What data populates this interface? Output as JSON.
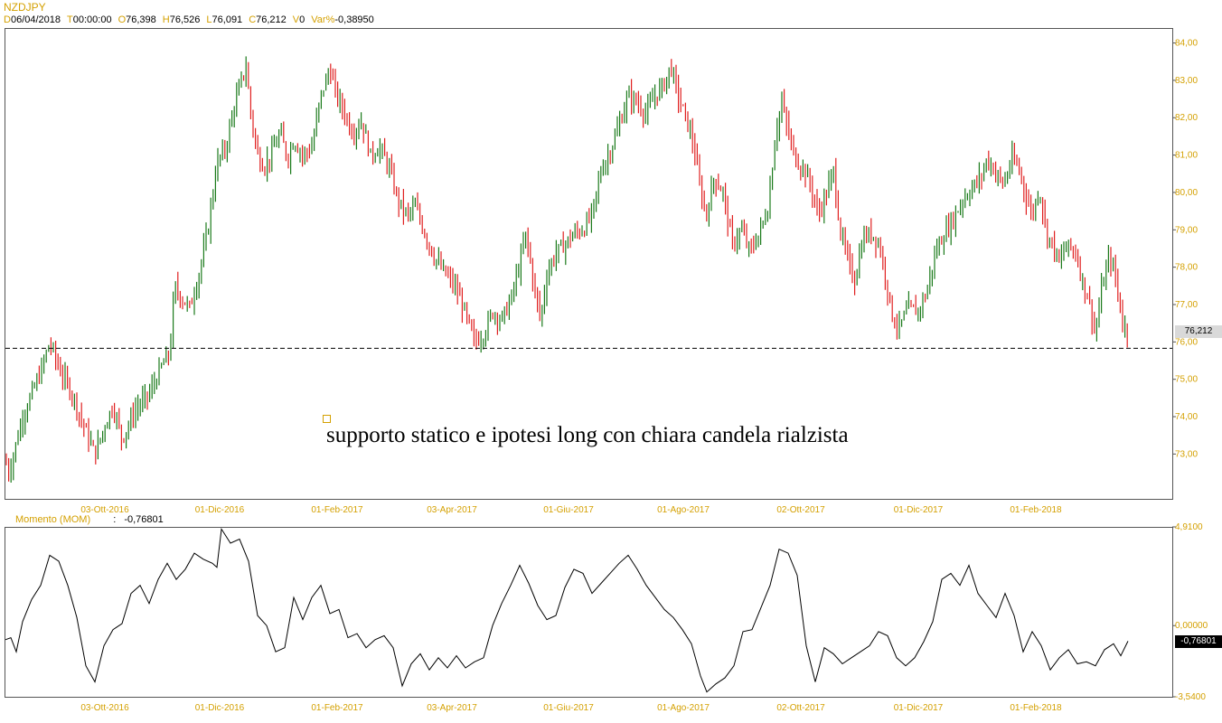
{
  "header": {
    "symbol": "NZDJPY",
    "fields": [
      {
        "key": "D",
        "value": "06/04/2018"
      },
      {
        "key": "T",
        "value": "00:00:00"
      },
      {
        "key": "O",
        "value": "76,398"
      },
      {
        "key": "H",
        "value": "76,526"
      },
      {
        "key": "L",
        "value": "76,091"
      },
      {
        "key": "C",
        "value": "76,212"
      },
      {
        "key": "V",
        "value": "0"
      },
      {
        "key": "Var%",
        "value": "-0,38950"
      }
    ]
  },
  "annotation": {
    "text": "supporto statico e ipotesi long con chiara candela rialzista"
  },
  "colors": {
    "up": "#1a7a1a",
    "down": "#e02020",
    "axis_text": "#d4a000",
    "line": "#000000"
  },
  "chart_data": [
    {
      "type": "candlestick",
      "title": "NZDJPY",
      "x_tick_labels": [
        "03-Ott-2016",
        "01-Dic-2016",
        "01-Feb-2017",
        "03-Apr-2017",
        "01-Giu-2017",
        "01-Ago-2017",
        "02-Ott-2017",
        "01-Dic-2017",
        "01-Feb-2018"
      ],
      "y_ticks": [
        "73,00",
        "74,00",
        "75,00",
        "76,00",
        "77,00",
        "78,00",
        "79,00",
        "80,00",
        "81,00",
        "82,00",
        "83,00",
        "84,00"
      ],
      "ylim": [
        71.8,
        84.4
      ],
      "last_price_label": "76,212",
      "support_level": 75.83,
      "close_path": [
        [
          0,
          73.3
        ],
        [
          10,
          72.5
        ],
        [
          25,
          74.0
        ],
        [
          45,
          75.2
        ],
        [
          55,
          76.0
        ],
        [
          65,
          75.3
        ],
        [
          80,
          74.6
        ],
        [
          95,
          73.6
        ],
        [
          105,
          73.0
        ],
        [
          115,
          73.7
        ],
        [
          125,
          74.3
        ],
        [
          135,
          73.4
        ],
        [
          150,
          74.2
        ],
        [
          165,
          74.6
        ],
        [
          180,
          75.4
        ],
        [
          188,
          75.7
        ],
        [
          193,
          77.5
        ],
        [
          200,
          77.2
        ],
        [
          210,
          76.9
        ],
        [
          220,
          77.8
        ],
        [
          230,
          79.0
        ],
        [
          240,
          80.8
        ],
        [
          250,
          81.2
        ],
        [
          258,
          82.2
        ],
        [
          266,
          82.9
        ],
        [
          272,
          83.4
        ],
        [
          278,
          82.0
        ],
        [
          285,
          81.0
        ],
        [
          292,
          80.7
        ],
        [
          300,
          81.0
        ],
        [
          310,
          81.6
        ],
        [
          318,
          80.9
        ],
        [
          325,
          81.4
        ],
        [
          335,
          81.0
        ],
        [
          345,
          81.2
        ],
        [
          355,
          82.6
        ],
        [
          365,
          83.3
        ],
        [
          372,
          82.6
        ],
        [
          380,
          82.2
        ],
        [
          390,
          81.6
        ],
        [
          400,
          81.9
        ],
        [
          410,
          81.0
        ],
        [
          420,
          81.2
        ],
        [
          430,
          80.7
        ],
        [
          440,
          79.8
        ],
        [
          450,
          79.4
        ],
        [
          460,
          79.6
        ],
        [
          470,
          78.9
        ],
        [
          480,
          78.3
        ],
        [
          490,
          77.9
        ],
        [
          500,
          77.6
        ],
        [
          510,
          77.1
        ],
        [
          518,
          76.5
        ],
        [
          525,
          76.0
        ],
        [
          535,
          76.2
        ],
        [
          545,
          76.8
        ],
        [
          555,
          76.6
        ],
        [
          565,
          77.1
        ],
        [
          575,
          78.1
        ],
        [
          582,
          78.9
        ],
        [
          590,
          77.6
        ],
        [
          598,
          76.6
        ],
        [
          605,
          77.8
        ],
        [
          615,
          78.4
        ],
        [
          625,
          78.6
        ],
        [
          635,
          78.9
        ],
        [
          645,
          79.0
        ],
        [
          655,
          79.4
        ],
        [
          665,
          80.6
        ],
        [
          675,
          81.1
        ],
        [
          685,
          81.8
        ],
        [
          695,
          82.6
        ],
        [
          705,
          82.4
        ],
        [
          715,
          82.1
        ],
        [
          725,
          82.6
        ],
        [
          735,
          82.9
        ],
        [
          742,
          83.4
        ],
        [
          750,
          82.6
        ],
        [
          760,
          81.9
        ],
        [
          768,
          81.2
        ],
        [
          775,
          80.0
        ],
        [
          782,
          79.4
        ],
        [
          790,
          80.4
        ],
        [
          800,
          80.0
        ],
        [
          810,
          78.6
        ],
        [
          820,
          79.0
        ],
        [
          830,
          78.4
        ],
        [
          840,
          78.9
        ],
        [
          850,
          79.6
        ],
        [
          858,
          81.6
        ],
        [
          865,
          82.4
        ],
        [
          872,
          81.6
        ],
        [
          880,
          80.9
        ],
        [
          890,
          80.6
        ],
        [
          898,
          80.1
        ],
        [
          905,
          79.4
        ],
        [
          915,
          80.0
        ],
        [
          922,
          80.6
        ],
        [
          930,
          78.9
        ],
        [
          938,
          78.2
        ],
        [
          945,
          77.6
        ],
        [
          955,
          78.8
        ],
        [
          965,
          78.9
        ],
        [
          973,
          78.6
        ],
        [
          980,
          77.7
        ],
        [
          988,
          76.6
        ],
        [
          995,
          76.4
        ],
        [
          1005,
          76.9
        ],
        [
          1015,
          76.8
        ],
        [
          1025,
          77.3
        ],
        [
          1035,
          78.4
        ],
        [
          1045,
          78.9
        ],
        [
          1055,
          79.3
        ],
        [
          1065,
          79.8
        ],
        [
          1075,
          80.1
        ],
        [
          1085,
          80.4
        ],
        [
          1092,
          80.9
        ],
        [
          1100,
          80.6
        ],
        [
          1110,
          80.2
        ],
        [
          1120,
          80.9
        ],
        [
          1128,
          80.6
        ],
        [
          1135,
          79.9
        ],
        [
          1142,
          79.4
        ],
        [
          1150,
          80.1
        ],
        [
          1158,
          78.9
        ],
        [
          1165,
          78.6
        ],
        [
          1172,
          78.1
        ],
        [
          1180,
          78.6
        ],
        [
          1190,
          78.4
        ],
        [
          1198,
          77.6
        ],
        [
          1205,
          77.1
        ],
        [
          1212,
          76.2
        ],
        [
          1220,
          77.6
        ],
        [
          1228,
          78.3
        ],
        [
          1235,
          77.6
        ],
        [
          1242,
          76.5
        ],
        [
          1248,
          76.21
        ]
      ]
    },
    {
      "type": "line",
      "title": "Momento (MOM)",
      "last_value_label": "-0,76801",
      "y_ticks": [
        "4,9100",
        "0,00000",
        "-3,5400"
      ],
      "ylim": [
        -3.54,
        4.91
      ],
      "x_tick_labels": [
        "03-Ott-2016",
        "01-Dic-2016",
        "01-Feb-2017",
        "03-Apr-2017",
        "01-Giu-2017",
        "01-Ago-2017",
        "02-Ott-2017",
        "01-Dic-2017",
        "01-Feb-2018"
      ],
      "path": [
        [
          6,
          -0.7
        ],
        [
          12,
          -0.6
        ],
        [
          18,
          -1.3
        ],
        [
          25,
          0.2
        ],
        [
          35,
          1.3
        ],
        [
          45,
          2.0
        ],
        [
          55,
          3.5
        ],
        [
          65,
          3.2
        ],
        [
          75,
          2.0
        ],
        [
          85,
          0.4
        ],
        [
          95,
          -2.0
        ],
        [
          105,
          -2.8
        ],
        [
          115,
          -1.0
        ],
        [
          125,
          -0.2
        ],
        [
          135,
          0.1
        ],
        [
          145,
          1.6
        ],
        [
          155,
          2.0
        ],
        [
          165,
          1.1
        ],
        [
          175,
          2.3
        ],
        [
          185,
          3.1
        ],
        [
          195,
          2.3
        ],
        [
          205,
          2.8
        ],
        [
          215,
          3.6
        ],
        [
          225,
          3.3
        ],
        [
          235,
          3.1
        ],
        [
          240,
          2.9
        ],
        [
          245,
          4.8
        ],
        [
          255,
          4.1
        ],
        [
          265,
          4.3
        ],
        [
          275,
          3.2
        ],
        [
          285,
          0.5
        ],
        [
          295,
          0.0
        ],
        [
          305,
          -1.3
        ],
        [
          315,
          -1.1
        ],
        [
          325,
          1.4
        ],
        [
          335,
          0.3
        ],
        [
          345,
          1.4
        ],
        [
          355,
          2.0
        ],
        [
          365,
          0.6
        ],
        [
          375,
          0.8
        ],
        [
          385,
          -0.6
        ],
        [
          395,
          -0.4
        ],
        [
          405,
          -1.1
        ],
        [
          415,
          -0.7
        ],
        [
          425,
          -0.5
        ],
        [
          435,
          -1.1
        ],
        [
          445,
          -3.0
        ],
        [
          455,
          -1.9
        ],
        [
          465,
          -1.4
        ],
        [
          475,
          -2.2
        ],
        [
          485,
          -1.6
        ],
        [
          495,
          -2.1
        ],
        [
          505,
          -1.5
        ],
        [
          515,
          -2.1
        ],
        [
          525,
          -1.8
        ],
        [
          535,
          -1.6
        ],
        [
          545,
          0.0
        ],
        [
          555,
          1.1
        ],
        [
          565,
          2.0
        ],
        [
          575,
          3.0
        ],
        [
          585,
          2.1
        ],
        [
          595,
          1.0
        ],
        [
          605,
          0.3
        ],
        [
          615,
          0.5
        ],
        [
          625,
          1.9
        ],
        [
          635,
          2.8
        ],
        [
          645,
          2.6
        ],
        [
          655,
          1.6
        ],
        [
          665,
          2.1
        ],
        [
          675,
          2.6
        ],
        [
          685,
          3.1
        ],
        [
          695,
          3.5
        ],
        [
          705,
          2.8
        ],
        [
          715,
          2.0
        ],
        [
          725,
          1.4
        ],
        [
          735,
          0.8
        ],
        [
          745,
          0.4
        ],
        [
          755,
          -0.2
        ],
        [
          765,
          -0.9
        ],
        [
          775,
          -2.5
        ],
        [
          782,
          -3.3
        ],
        [
          792,
          -2.9
        ],
        [
          802,
          -2.6
        ],
        [
          812,
          -2.0
        ],
        [
          822,
          -0.3
        ],
        [
          832,
          -0.2
        ],
        [
          842,
          0.9
        ],
        [
          852,
          2.0
        ],
        [
          862,
          3.8
        ],
        [
          872,
          3.6
        ],
        [
          882,
          2.5
        ],
        [
          892,
          -1.0
        ],
        [
          902,
          -2.8
        ],
        [
          912,
          -1.1
        ],
        [
          922,
          -1.4
        ],
        [
          932,
          -1.9
        ],
        [
          942,
          -1.6
        ],
        [
          952,
          -1.3
        ],
        [
          962,
          -1.0
        ],
        [
          972,
          -0.3
        ],
        [
          982,
          -0.5
        ],
        [
          992,
          -1.6
        ],
        [
          1002,
          -2.0
        ],
        [
          1012,
          -1.6
        ],
        [
          1022,
          -0.8
        ],
        [
          1032,
          0.2
        ],
        [
          1042,
          2.3
        ],
        [
          1052,
          2.6
        ],
        [
          1062,
          2.0
        ],
        [
          1072,
          3.0
        ],
        [
          1082,
          1.6
        ],
        [
          1092,
          1.0
        ],
        [
          1102,
          0.4
        ],
        [
          1112,
          1.6
        ],
        [
          1122,
          0.5
        ],
        [
          1132,
          -1.3
        ],
        [
          1142,
          -0.3
        ],
        [
          1152,
          -1.0
        ],
        [
          1162,
          -2.2
        ],
        [
          1172,
          -1.6
        ],
        [
          1182,
          -1.2
        ],
        [
          1192,
          -1.9
        ],
        [
          1202,
          -1.8
        ],
        [
          1212,
          -2.0
        ],
        [
          1222,
          -1.2
        ],
        [
          1232,
          -0.9
        ],
        [
          1240,
          -1.5
        ],
        [
          1248,
          -0.77
        ]
      ]
    }
  ]
}
